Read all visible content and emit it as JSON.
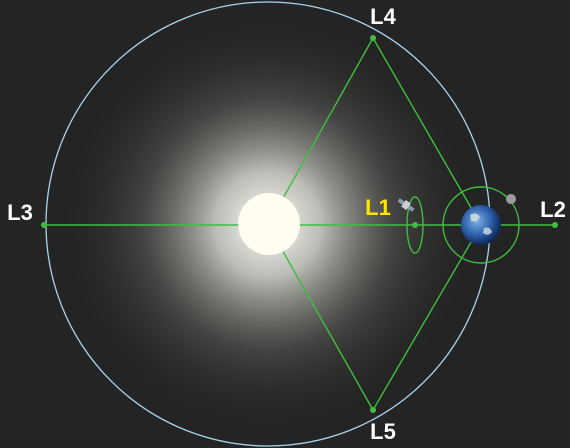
{
  "nodes": [
    {
      "label": "L1"
    },
    {
      "label": "L2"
    },
    {
      "label": "L3"
    },
    {
      "label": "L4"
    },
    {
      "label": "L5"
    }
  ]
}
